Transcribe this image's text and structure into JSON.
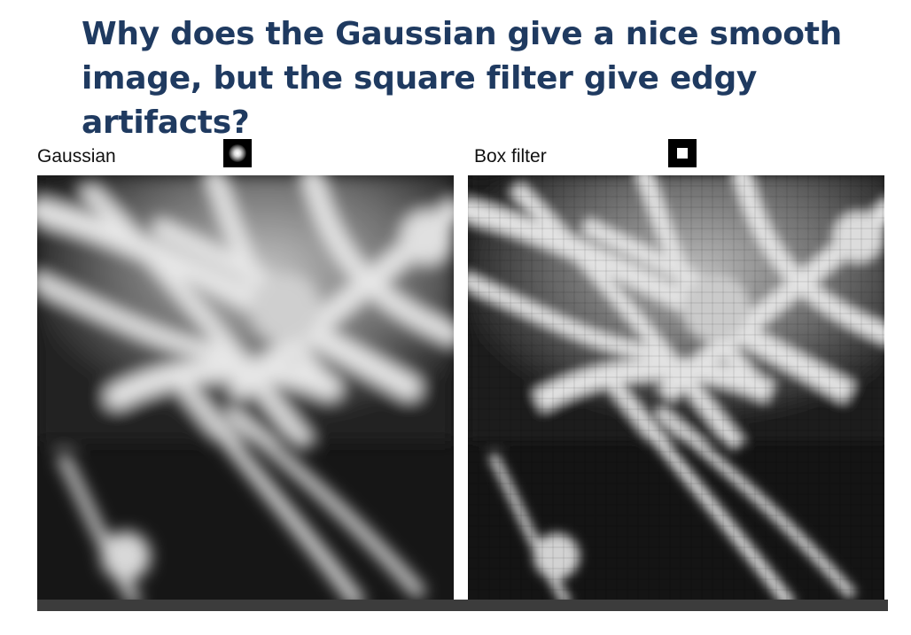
{
  "slide": {
    "title_line1": "Why does the Gaussian give a nice smooth",
    "title_line2": "image, but the square filter give edgy artifacts?"
  },
  "panels": [
    {
      "label": "Gaussian",
      "kernel_icon": "gaussian-kernel-icon"
    },
    {
      "label": "Box filter",
      "kernel_icon": "box-kernel-icon"
    }
  ]
}
